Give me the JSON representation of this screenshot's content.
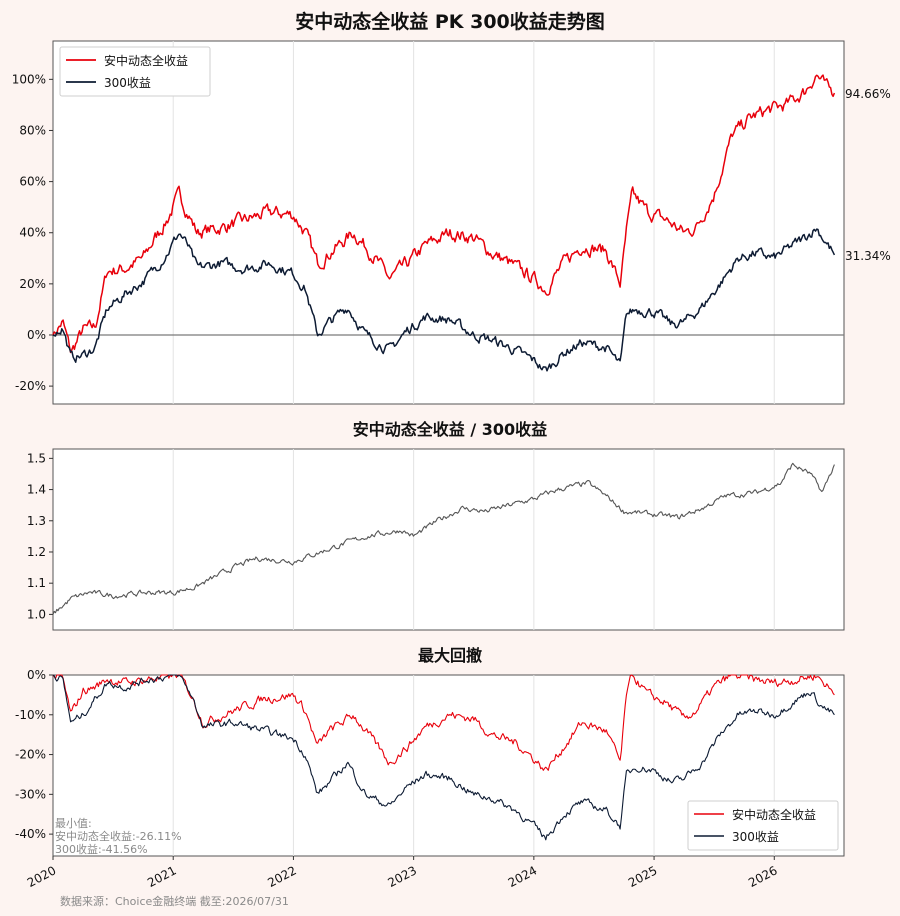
{
  "chart_data": [
    {
      "type": "line",
      "title": "安中动态全收益 PK 300收益走势图",
      "x_range": [
        "2020-01",
        "2026-07-31"
      ],
      "yticks": [
        "-20%",
        "0%",
        "20%",
        "40%",
        "60%",
        "80%",
        "100%"
      ],
      "ylim": [
        -27,
        115
      ],
      "grid": "vertical",
      "legend_position": "top-left",
      "baseline": 0,
      "series": [
        {
          "name": "安中动态全收益",
          "color": "#e8000b",
          "final_label": "94.66%",
          "anchors": [
            [
              2020.0,
              0
            ],
            [
              2020.08,
              5
            ],
            [
              2020.15,
              -7
            ],
            [
              2020.25,
              2
            ],
            [
              2020.35,
              3
            ],
            [
              2020.45,
              25
            ],
            [
              2020.6,
              26
            ],
            [
              2020.75,
              30
            ],
            [
              2020.85,
              38
            ],
            [
              2020.95,
              45
            ],
            [
              2021.05,
              55
            ],
            [
              2021.12,
              48
            ],
            [
              2021.2,
              40
            ],
            [
              2021.4,
              42
            ],
            [
              2021.6,
              45
            ],
            [
              2021.8,
              48
            ],
            [
              2022.0,
              47
            ],
            [
              2022.1,
              40
            ],
            [
              2022.2,
              28
            ],
            [
              2022.3,
              32
            ],
            [
              2022.5,
              40
            ],
            [
              2022.65,
              32
            ],
            [
              2022.8,
              22
            ],
            [
              2022.95,
              28
            ],
            [
              2023.1,
              35
            ],
            [
              2023.3,
              40
            ],
            [
              2023.5,
              38
            ],
            [
              2023.65,
              32
            ],
            [
              2023.8,
              28
            ],
            [
              2024.0,
              22
            ],
            [
              2024.1,
              18
            ],
            [
              2024.25,
              28
            ],
            [
              2024.4,
              35
            ],
            [
              2024.6,
              33
            ],
            [
              2024.72,
              20
            ],
            [
              2024.77,
              40
            ],
            [
              2024.82,
              55
            ],
            [
              2024.95,
              48
            ],
            [
              2025.1,
              45
            ],
            [
              2025.25,
              40
            ],
            [
              2025.35,
              42
            ],
            [
              2025.5,
              55
            ],
            [
              2025.65,
              78
            ],
            [
              2025.8,
              85
            ],
            [
              2025.95,
              88
            ],
            [
              2026.1,
              90
            ],
            [
              2026.25,
              95
            ],
            [
              2026.35,
              102
            ],
            [
              2026.45,
              96
            ],
            [
              2026.5,
              94.66
            ]
          ]
        },
        {
          "name": "300收益",
          "color": "#0d1b33",
          "final_label": "31.34%",
          "anchors": [
            [
              2020.0,
              0
            ],
            [
              2020.08,
              3
            ],
            [
              2020.15,
              -9
            ],
            [
              2020.25,
              -8
            ],
            [
              2020.35,
              -5
            ],
            [
              2020.45,
              10
            ],
            [
              2020.6,
              16
            ],
            [
              2020.75,
              21
            ],
            [
              2020.85,
              26
            ],
            [
              2020.95,
              32
            ],
            [
              2021.05,
              40
            ],
            [
              2021.12,
              35
            ],
            [
              2021.2,
              26
            ],
            [
              2021.4,
              28
            ],
            [
              2021.6,
              26
            ],
            [
              2021.8,
              28
            ],
            [
              2022.0,
              24
            ],
            [
              2022.1,
              18
            ],
            [
              2022.2,
              0
            ],
            [
              2022.3,
              5
            ],
            [
              2022.45,
              11
            ],
            [
              2022.6,
              0
            ],
            [
              2022.8,
              -6
            ],
            [
              2022.95,
              2
            ],
            [
              2023.1,
              7
            ],
            [
              2023.3,
              6
            ],
            [
              2023.5,
              0
            ],
            [
              2023.65,
              -2
            ],
            [
              2023.8,
              -5
            ],
            [
              2024.0,
              -10
            ],
            [
              2024.1,
              -14
            ],
            [
              2024.25,
              -7
            ],
            [
              2024.4,
              -3
            ],
            [
              2024.6,
              -5
            ],
            [
              2024.72,
              -12
            ],
            [
              2024.77,
              8
            ],
            [
              2024.85,
              10
            ],
            [
              2025.0,
              9
            ],
            [
              2025.15,
              4
            ],
            [
              2025.25,
              5
            ],
            [
              2025.4,
              11
            ],
            [
              2025.55,
              20
            ],
            [
              2025.7,
              30
            ],
            [
              2025.85,
              32
            ],
            [
              2026.0,
              30
            ],
            [
              2026.15,
              35
            ],
            [
              2026.25,
              38
            ],
            [
              2026.35,
              42
            ],
            [
              2026.45,
              35
            ],
            [
              2026.5,
              31.34
            ]
          ]
        }
      ]
    },
    {
      "type": "line",
      "title": "安中动态全收益 / 300收益",
      "yticks": [
        "1.0",
        "1.1",
        "1.2",
        "1.3",
        "1.4",
        "1.5"
      ],
      "ylim": [
        0.95,
        1.53
      ],
      "grid": "vertical",
      "series": [
        {
          "color": "#555555",
          "anchors": [
            [
              2020.0,
              1.0
            ],
            [
              2020.15,
              1.05
            ],
            [
              2020.3,
              1.07
            ],
            [
              2020.5,
              1.06
            ],
            [
              2020.8,
              1.07
            ],
            [
              2021.0,
              1.07
            ],
            [
              2021.2,
              1.09
            ],
            [
              2021.5,
              1.15
            ],
            [
              2021.7,
              1.18
            ],
            [
              2022.0,
              1.17
            ],
            [
              2022.3,
              1.21
            ],
            [
              2022.6,
              1.25
            ],
            [
              2022.9,
              1.27
            ],
            [
              2023.0,
              1.25
            ],
            [
              2023.2,
              1.3
            ],
            [
              2023.4,
              1.34
            ],
            [
              2023.6,
              1.33
            ],
            [
              2023.8,
              1.35
            ],
            [
              2024.0,
              1.37
            ],
            [
              2024.2,
              1.4
            ],
            [
              2024.45,
              1.42
            ],
            [
              2024.6,
              1.38
            ],
            [
              2024.75,
              1.33
            ],
            [
              2025.0,
              1.32
            ],
            [
              2025.2,
              1.31
            ],
            [
              2025.4,
              1.34
            ],
            [
              2025.6,
              1.38
            ],
            [
              2025.85,
              1.39
            ],
            [
              2026.05,
              1.42
            ],
            [
              2026.15,
              1.48
            ],
            [
              2026.3,
              1.45
            ],
            [
              2026.4,
              1.39
            ],
            [
              2026.5,
              1.48
            ]
          ]
        }
      ]
    },
    {
      "type": "line",
      "title": "最大回撤",
      "yticks": [
        "-40%",
        "-30%",
        "-20%",
        "-10%",
        "0%"
      ],
      "ylim": [
        -45.5,
        0
      ],
      "grid": "vertical",
      "legend_position": "bottom-right",
      "min_label": "最小值:",
      "min_values": [
        "安中动态全收益:-26.11%",
        "300收益:-41.56%"
      ],
      "series": [
        {
          "name": "安中动态全收益",
          "color": "#e8000b",
          "anchors": [
            [
              2020.0,
              0
            ],
            [
              2020.08,
              -1
            ],
            [
              2020.15,
              -10
            ],
            [
              2020.25,
              -4
            ],
            [
              2020.35,
              -3
            ],
            [
              2020.45,
              -1
            ],
            [
              2020.6,
              -2
            ],
            [
              2020.8,
              -1
            ],
            [
              2021.05,
              0
            ],
            [
              2021.15,
              -5
            ],
            [
              2021.25,
              -12
            ],
            [
              2021.5,
              -9
            ],
            [
              2021.75,
              -6
            ],
            [
              2022.0,
              -5
            ],
            [
              2022.1,
              -9
            ],
            [
              2022.2,
              -18
            ],
            [
              2022.3,
              -14
            ],
            [
              2022.5,
              -10
            ],
            [
              2022.65,
              -16
            ],
            [
              2022.8,
              -22
            ],
            [
              2022.95,
              -18
            ],
            [
              2023.1,
              -13
            ],
            [
              2023.3,
              -10
            ],
            [
              2023.5,
              -11
            ],
            [
              2023.65,
              -15
            ],
            [
              2023.85,
              -17
            ],
            [
              2024.0,
              -21
            ],
            [
              2024.1,
              -24
            ],
            [
              2024.25,
              -18
            ],
            [
              2024.4,
              -12
            ],
            [
              2024.6,
              -14
            ],
            [
              2024.72,
              -22
            ],
            [
              2024.77,
              -5
            ],
            [
              2024.82,
              0
            ],
            [
              2024.95,
              -5
            ],
            [
              2025.1,
              -7
            ],
            [
              2025.25,
              -11
            ],
            [
              2025.35,
              -9
            ],
            [
              2025.5,
              -3
            ],
            [
              2025.65,
              0
            ],
            [
              2025.8,
              -1
            ],
            [
              2026.0,
              -2
            ],
            [
              2026.2,
              -1
            ],
            [
              2026.35,
              0
            ],
            [
              2026.45,
              -3
            ],
            [
              2026.5,
              -5
            ]
          ]
        },
        {
          "name": "300收益",
          "color": "#0d1b33",
          "anchors": [
            [
              2020.0,
              0
            ],
            [
              2020.08,
              -1
            ],
            [
              2020.15,
              -12
            ],
            [
              2020.25,
              -10
            ],
            [
              2020.35,
              -6
            ],
            [
              2020.45,
              -2
            ],
            [
              2020.6,
              -3
            ],
            [
              2020.8,
              -1
            ],
            [
              2021.05,
              0
            ],
            [
              2021.15,
              -5
            ],
            [
              2021.25,
              -13
            ],
            [
              2021.5,
              -12
            ],
            [
              2021.75,
              -14
            ],
            [
              2022.0,
              -16
            ],
            [
              2022.1,
              -20
            ],
            [
              2022.2,
              -30
            ],
            [
              2022.3,
              -27
            ],
            [
              2022.45,
              -22
            ],
            [
              2022.6,
              -30
            ],
            [
              2022.8,
              -33
            ],
            [
              2022.95,
              -28
            ],
            [
              2023.1,
              -25
            ],
            [
              2023.3,
              -26
            ],
            [
              2023.5,
              -30
            ],
            [
              2023.65,
              -31
            ],
            [
              2023.85,
              -34
            ],
            [
              2024.0,
              -38
            ],
            [
              2024.1,
              -41
            ],
            [
              2024.25,
              -35
            ],
            [
              2024.4,
              -32
            ],
            [
              2024.6,
              -34
            ],
            [
              2024.72,
              -38
            ],
            [
              2024.77,
              -25
            ],
            [
              2024.85,
              -23
            ],
            [
              2025.0,
              -24
            ],
            [
              2025.15,
              -27
            ],
            [
              2025.25,
              -26
            ],
            [
              2025.4,
              -22
            ],
            [
              2025.55,
              -15
            ],
            [
              2025.7,
              -10
            ],
            [
              2025.85,
              -9
            ],
            [
              2026.0,
              -10
            ],
            [
              2026.15,
              -7
            ],
            [
              2026.3,
              -4
            ],
            [
              2026.4,
              -8
            ],
            [
              2026.5,
              -10
            ]
          ]
        }
      ]
    }
  ],
  "x_ticks": [
    "2020",
    "2021",
    "2022",
    "2023",
    "2024",
    "2025",
    "2026"
  ],
  "source": "数据来源：Choice金融终端 截至:2026/07/31"
}
